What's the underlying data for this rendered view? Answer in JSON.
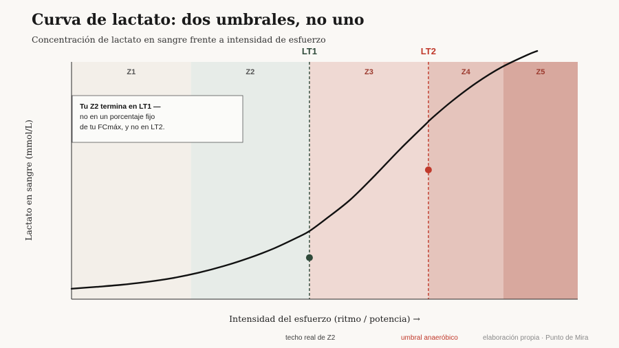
{
  "header": {
    "title": "Curva de lactato: dos umbrales, no uno",
    "subtitle": "Concentración de lactato en sangre frente a intensidad de esfuerzo"
  },
  "footer": {
    "left": "techo real de Z2",
    "middle": "umbral anaeróbico",
    "right": "elaboración propia · Punto de Mira"
  },
  "chart_data": {
    "type": "line",
    "title": "Curva de lactato: dos umbrales, no uno",
    "subtitle": "Concentración de lactato en sangre frente a intensidad de esfuerzo",
    "xlabel": "Intensidad del esfuerzo (ritmo / potencia) →",
    "ylabel": "Lactato en sangre (mmol/L)",
    "xlim": [
      0,
      100
    ],
    "ylim": [
      0,
      100
    ],
    "grid": false,
    "axis_ticks": false,
    "series": [
      {
        "x": [
          0,
          5,
          10,
          15,
          20,
          25,
          30,
          35,
          40,
          45,
          47,
          50,
          55,
          60,
          65,
          70,
          71,
          75,
          80,
          85,
          90,
          92
        ],
        "y": [
          4.4,
          5.2,
          6.1,
          7.3,
          8.9,
          11.1,
          13.9,
          17.3,
          21.4,
          26.4,
          28.7,
          33.4,
          41.8,
          52.3,
          63.4,
          73.8,
          75.9,
          83.2,
          91.2,
          97.8,
          102.9,
          104.6
        ]
      }
    ],
    "zones": [
      {
        "label": "Z1",
        "from": 0,
        "to": 23.6,
        "color": "#f3efe9"
      },
      {
        "label": "Z2",
        "from": 23.6,
        "to": 47,
        "color": "#e7ece8"
      },
      {
        "label": "Z3",
        "from": 47,
        "to": 70.5,
        "color": "#efd9d3"
      },
      {
        "label": "Z4",
        "from": 70.5,
        "to": 85.3,
        "color": "#e5c4bc"
      },
      {
        "label": "Z5",
        "from": 85.3,
        "to": 100,
        "color": "#d8a89e"
      }
    ],
    "zone_label_colors": {
      "Z1": "#555555",
      "Z2": "#555555",
      "Z3": "#9b3a2e",
      "Z4": "#9b3a2e",
      "Z5": "#9b3a2e"
    },
    "thresholds": [
      {
        "label": "LT1",
        "x": 47,
        "y": 17.5,
        "color": "#2f4a3a"
      },
      {
        "label": "LT2",
        "x": 70.5,
        "y": 54.5,
        "color": "#c0392b"
      }
    ],
    "annotation": {
      "bold": "Tu Z2 termina en LT1 —",
      "lines": [
        "no en un porcentaje fijo",
        "de tu FCmáx, y no en LT2."
      ]
    }
  }
}
